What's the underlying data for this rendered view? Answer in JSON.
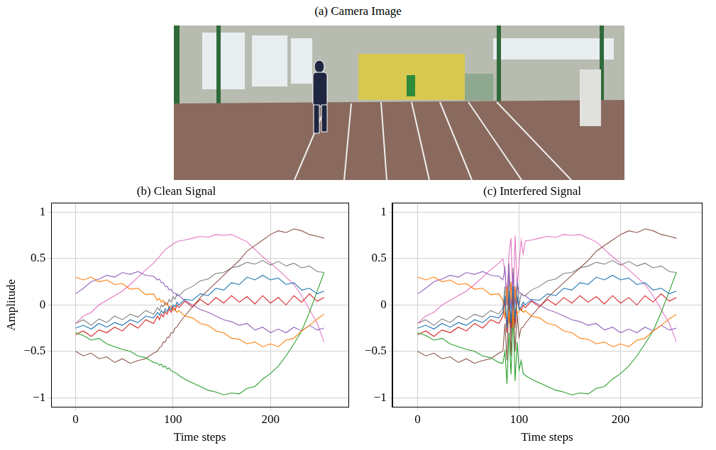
{
  "image_panel": {
    "title": "(a) Camera Image"
  },
  "chart_data": [
    {
      "type": "line",
      "title": "(b) Clean Signal",
      "xlabel": "Time steps",
      "ylabel": "Amplitude",
      "grid": true,
      "legend": "none",
      "marker": "none",
      "line_style": "solid",
      "xlim": [
        -25,
        280
      ],
      "xticks": [
        0,
        100,
        200
      ],
      "ylim": [
        -1.1,
        1.1
      ],
      "yticks": [
        {
          "value": -1,
          "label": "−1"
        },
        {
          "value": -0.5,
          "label": "−0.5"
        },
        0,
        0.5,
        1
      ],
      "x": [
        0,
        8,
        16,
        24,
        32,
        40,
        48,
        56,
        64,
        72,
        80,
        84,
        86,
        88,
        90,
        92,
        94,
        96,
        98,
        100,
        102,
        104,
        106,
        112,
        120,
        128,
        136,
        144,
        152,
        160,
        168,
        176,
        184,
        192,
        200,
        208,
        216,
        224,
        232,
        240,
        248,
        255
      ],
      "series": [
        {
          "color": "#1f77b4",
          "values": [
            -0.25,
            -0.22,
            -0.26,
            -0.2,
            -0.24,
            -0.19,
            -0.22,
            -0.16,
            -0.19,
            -0.12,
            -0.14,
            -0.08,
            -0.11,
            -0.06,
            -0.09,
            -0.04,
            -0.07,
            -0.02,
            -0.05,
            0.0,
            -0.02,
            0.03,
            0.0,
            0.06,
            0.05,
            0.12,
            0.1,
            0.18,
            0.16,
            0.24,
            0.22,
            0.3,
            0.27,
            0.32,
            0.27,
            0.29,
            0.22,
            0.24,
            0.16,
            0.18,
            0.12,
            0.15
          ]
        },
        {
          "color": "#ff7f0e",
          "values": [
            0.3,
            0.27,
            0.3,
            0.25,
            0.27,
            0.22,
            0.23,
            0.17,
            0.18,
            0.11,
            0.12,
            0.05,
            0.07,
            0.03,
            0.05,
            0.0,
            0.02,
            -0.03,
            -0.01,
            -0.06,
            -0.04,
            -0.08,
            -0.06,
            -0.12,
            -0.14,
            -0.2,
            -0.22,
            -0.28,
            -0.3,
            -0.36,
            -0.37,
            -0.42,
            -0.4,
            -0.45,
            -0.42,
            -0.45,
            -0.38,
            -0.36,
            -0.28,
            -0.22,
            -0.15,
            -0.1
          ]
        },
        {
          "color": "#2ca02c",
          "values": [
            -0.3,
            -0.33,
            -0.38,
            -0.36,
            -0.42,
            -0.45,
            -0.48,
            -0.5,
            -0.55,
            -0.57,
            -0.62,
            -0.63,
            -0.65,
            -0.64,
            -0.67,
            -0.66,
            -0.69,
            -0.68,
            -0.71,
            -0.72,
            -0.73,
            -0.74,
            -0.76,
            -0.8,
            -0.84,
            -0.88,
            -0.92,
            -0.94,
            -0.97,
            -0.95,
            -0.96,
            -0.9,
            -0.88,
            -0.8,
            -0.74,
            -0.66,
            -0.55,
            -0.42,
            -0.28,
            -0.08,
            0.15,
            0.35
          ]
        },
        {
          "color": "#d62728",
          "values": [
            -0.32,
            -0.28,
            -0.34,
            -0.27,
            -0.3,
            -0.24,
            -0.28,
            -0.2,
            -0.25,
            -0.16,
            -0.2,
            -0.12,
            -0.16,
            -0.1,
            -0.13,
            -0.07,
            -0.1,
            -0.04,
            -0.08,
            -0.02,
            -0.06,
            0.0,
            -0.03,
            0.04,
            -0.02,
            0.06,
            0.0,
            0.08,
            0.02,
            0.1,
            0.03,
            0.09,
            0.01,
            0.1,
            0.02,
            0.08,
            0.0,
            0.1,
            0.03,
            0.12,
            0.04,
            0.08
          ]
        },
        {
          "color": "#9467bd",
          "values": [
            0.12,
            0.18,
            0.25,
            0.28,
            0.32,
            0.3,
            0.35,
            0.33,
            0.36,
            0.32,
            0.31,
            0.27,
            0.28,
            0.24,
            0.24,
            0.2,
            0.2,
            0.16,
            0.17,
            0.13,
            0.13,
            0.1,
            0.1,
            0.05,
            0.0,
            -0.05,
            -0.08,
            -0.12,
            -0.16,
            -0.18,
            -0.22,
            -0.2,
            -0.27,
            -0.24,
            -0.3,
            -0.26,
            -0.3,
            -0.24,
            -0.28,
            -0.22,
            -0.27,
            -0.25
          ]
        },
        {
          "color": "#8c564b",
          "values": [
            -0.5,
            -0.55,
            -0.52,
            -0.58,
            -0.56,
            -0.62,
            -0.58,
            -0.63,
            -0.6,
            -0.58,
            -0.52,
            -0.5,
            -0.46,
            -0.45,
            -0.4,
            -0.4,
            -0.35,
            -0.35,
            -0.3,
            -0.3,
            -0.25,
            -0.24,
            -0.2,
            -0.12,
            -0.02,
            0.08,
            0.16,
            0.24,
            0.32,
            0.4,
            0.48,
            0.58,
            0.64,
            0.7,
            0.76,
            0.8,
            0.78,
            0.82,
            0.8,
            0.76,
            0.74,
            0.72
          ]
        },
        {
          "color": "#e377c2",
          "values": [
            -0.2,
            -0.12,
            -0.08,
            0.0,
            0.05,
            0.1,
            0.15,
            0.22,
            0.3,
            0.38,
            0.45,
            0.5,
            0.52,
            0.55,
            0.57,
            0.6,
            0.61,
            0.63,
            0.64,
            0.66,
            0.67,
            0.68,
            0.69,
            0.7,
            0.72,
            0.74,
            0.73,
            0.76,
            0.75,
            0.76,
            0.72,
            0.68,
            0.6,
            0.52,
            0.45,
            0.38,
            0.3,
            0.22,
            0.1,
            -0.05,
            -0.2,
            -0.4
          ]
        },
        {
          "color": "#7f7f7f",
          "values": [
            -0.2,
            -0.16,
            -0.22,
            -0.15,
            -0.19,
            -0.12,
            -0.16,
            -0.1,
            -0.13,
            -0.06,
            -0.1,
            -0.03,
            -0.06,
            0.0,
            -0.02,
            0.03,
            0.0,
            0.06,
            0.03,
            0.09,
            0.06,
            0.12,
            0.1,
            0.16,
            0.2,
            0.26,
            0.28,
            0.34,
            0.35,
            0.4,
            0.42,
            0.46,
            0.44,
            0.48,
            0.43,
            0.47,
            0.42,
            0.45,
            0.4,
            0.42,
            0.36,
            0.35
          ]
        }
      ]
    },
    {
      "type": "line",
      "title": "(c) Interfered Signal",
      "xlabel": "Time steps",
      "grid": true,
      "legend": "none",
      "marker": "none",
      "line_style": "solid",
      "xlim": [
        -25,
        280
      ],
      "xticks": [
        0,
        100,
        200
      ],
      "ylim": [
        -1.1,
        1.1
      ],
      "yticks": [
        {
          "value": -1,
          "label": "−1"
        },
        {
          "value": -0.5,
          "label": "−0.5"
        },
        0,
        0.5,
        1
      ],
      "x": [
        0,
        8,
        16,
        24,
        32,
        40,
        48,
        56,
        64,
        72,
        80,
        84,
        86,
        88,
        90,
        92,
        94,
        96,
        98,
        100,
        102,
        104,
        106,
        112,
        120,
        128,
        136,
        144,
        152,
        160,
        168,
        176,
        184,
        192,
        200,
        208,
        216,
        224,
        232,
        240,
        248,
        255
      ],
      "series": [
        {
          "color": "#1f77b4",
          "values": [
            -0.25,
            -0.22,
            -0.26,
            -0.2,
            -0.24,
            -0.19,
            -0.22,
            -0.16,
            -0.19,
            -0.12,
            -0.14,
            -0.08,
            0.1,
            -0.25,
            0.15,
            -0.2,
            0.2,
            -0.15,
            0.1,
            -0.05,
            -0.02,
            0.03,
            0.0,
            0.06,
            0.05,
            0.12,
            0.1,
            0.18,
            0.16,
            0.24,
            0.22,
            0.3,
            0.27,
            0.32,
            0.27,
            0.29,
            0.22,
            0.24,
            0.16,
            0.18,
            0.12,
            0.15
          ]
        },
        {
          "color": "#ff7f0e",
          "values": [
            0.3,
            0.27,
            0.3,
            0.25,
            0.27,
            0.22,
            0.23,
            0.17,
            0.18,
            0.11,
            0.12,
            0.05,
            -0.15,
            0.2,
            -0.2,
            0.25,
            -0.25,
            0.2,
            -0.1,
            -0.06,
            -0.04,
            -0.08,
            -0.06,
            -0.12,
            -0.14,
            -0.2,
            -0.22,
            -0.28,
            -0.3,
            -0.36,
            -0.37,
            -0.42,
            -0.4,
            -0.45,
            -0.42,
            -0.45,
            -0.38,
            -0.36,
            -0.28,
            -0.22,
            -0.15,
            -0.1
          ]
        },
        {
          "color": "#2ca02c",
          "values": [
            -0.3,
            -0.33,
            -0.38,
            -0.36,
            -0.42,
            -0.45,
            -0.48,
            -0.5,
            -0.55,
            -0.57,
            -0.62,
            -0.63,
            -0.5,
            -0.85,
            -0.3,
            -0.75,
            -0.1,
            -0.82,
            -0.4,
            -0.7,
            -0.6,
            -0.74,
            -0.76,
            -0.8,
            -0.84,
            -0.88,
            -0.92,
            -0.94,
            -0.97,
            -0.95,
            -0.96,
            -0.9,
            -0.88,
            -0.8,
            -0.74,
            -0.66,
            -0.55,
            -0.42,
            -0.28,
            -0.08,
            0.15,
            0.35
          ]
        },
        {
          "color": "#d62728",
          "values": [
            -0.32,
            -0.28,
            -0.34,
            -0.27,
            -0.3,
            -0.24,
            -0.28,
            -0.2,
            -0.25,
            -0.16,
            -0.2,
            -0.12,
            0.05,
            -0.3,
            0.1,
            -0.25,
            0.15,
            -0.2,
            0.05,
            -0.02,
            -0.06,
            0.0,
            -0.03,
            0.04,
            -0.02,
            0.06,
            0.0,
            0.08,
            0.02,
            0.1,
            0.03,
            0.09,
            0.01,
            0.1,
            0.02,
            0.08,
            0.0,
            0.1,
            0.03,
            0.12,
            0.04,
            0.08
          ]
        },
        {
          "color": "#9467bd",
          "values": [
            0.12,
            0.18,
            0.25,
            0.28,
            0.32,
            0.3,
            0.35,
            0.33,
            0.36,
            0.32,
            0.31,
            0.27,
            0.4,
            0.0,
            0.45,
            -0.05,
            0.35,
            0.0,
            0.25,
            0.13,
            0.13,
            0.1,
            0.1,
            0.05,
            0.0,
            -0.05,
            -0.08,
            -0.12,
            -0.16,
            -0.18,
            -0.22,
            -0.2,
            -0.27,
            -0.24,
            -0.3,
            -0.26,
            -0.3,
            -0.24,
            -0.28,
            -0.22,
            -0.27,
            -0.25
          ]
        },
        {
          "color": "#8c564b",
          "values": [
            -0.5,
            -0.55,
            -0.52,
            -0.58,
            -0.56,
            -0.62,
            -0.58,
            -0.63,
            -0.6,
            -0.58,
            -0.52,
            -0.5,
            -0.2,
            -0.6,
            0.1,
            -0.55,
            0.2,
            -0.5,
            -0.1,
            -0.35,
            -0.25,
            -0.24,
            -0.2,
            -0.12,
            -0.02,
            0.08,
            0.16,
            0.24,
            0.32,
            0.4,
            0.48,
            0.58,
            0.64,
            0.7,
            0.76,
            0.8,
            0.78,
            0.82,
            0.8,
            0.76,
            0.74,
            0.72
          ]
        },
        {
          "color": "#e377c2",
          "values": [
            -0.2,
            -0.12,
            -0.08,
            0.0,
            0.05,
            0.1,
            0.15,
            0.22,
            0.3,
            0.38,
            0.45,
            0.5,
            0.35,
            0.1,
            0.55,
            0.72,
            -0.1,
            0.75,
            0.2,
            0.45,
            0.7,
            0.55,
            0.69,
            0.7,
            0.72,
            0.74,
            0.73,
            0.76,
            0.75,
            0.76,
            0.72,
            0.68,
            0.6,
            0.52,
            0.45,
            0.38,
            0.3,
            0.22,
            0.1,
            -0.05,
            -0.2,
            -0.4
          ]
        },
        {
          "color": "#7f7f7f",
          "values": [
            -0.2,
            -0.16,
            -0.22,
            -0.15,
            -0.19,
            -0.12,
            -0.16,
            -0.1,
            -0.13,
            -0.06,
            -0.1,
            -0.03,
            0.2,
            -0.3,
            0.35,
            -0.35,
            0.4,
            -0.25,
            0.25,
            0.0,
            0.12,
            0.1,
            0.1,
            0.16,
            0.2,
            0.26,
            0.28,
            0.34,
            0.35,
            0.4,
            0.42,
            0.46,
            0.44,
            0.48,
            0.43,
            0.47,
            0.42,
            0.45,
            0.4,
            0.42,
            0.36,
            0.35
          ]
        }
      ]
    }
  ]
}
